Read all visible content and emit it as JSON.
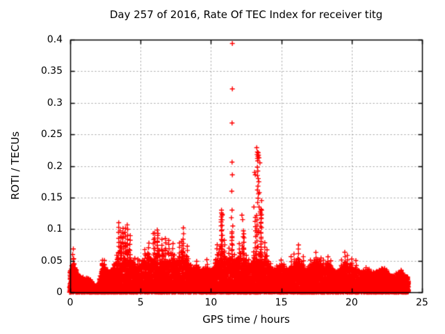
{
  "chart_data": {
    "type": "scatter",
    "title": "Day 257 of 2016, Rate Of TEC Index for receiver titg",
    "xlabel": "GPS time / hours",
    "ylabel": "ROTI / TECUs",
    "xlim": [
      0,
      25
    ],
    "ylim": [
      0,
      0.4
    ],
    "xticks": [
      0,
      5,
      10,
      15,
      20,
      25
    ],
    "xtick_labels": [
      "0",
      "5",
      "10",
      "15",
      "20",
      "25"
    ],
    "yticks": [
      0,
      0.05,
      0.1,
      0.15,
      0.2,
      0.25,
      0.3,
      0.35,
      0.4
    ],
    "ytick_labels": [
      "0",
      "0.05",
      "0.1",
      "0.15",
      "0.2",
      "0.25",
      "0.3",
      "0.35",
      "0.4"
    ],
    "grid": true,
    "grid_style": "dashed",
    "legend": "none",
    "marker": "plus",
    "marker_color": "#ff0000",
    "grid_color": "#9e9e9e",
    "frame_color": "#000000",
    "background_color": "#ffffff",
    "x_data_range_hours": [
      0,
      24
    ],
    "points_model": {
      "envelope_step_hours": 0.25,
      "envelope_max_roti": [
        0.05,
        0.08,
        0.048,
        0.04,
        0.038,
        0.035,
        0.028,
        0.012,
        0.012,
        0.065,
        0.06,
        0.045,
        0.055,
        0.07,
        0.12,
        0.115,
        0.12,
        0.1,
        0.07,
        0.06,
        0.065,
        0.09,
        0.095,
        0.075,
        0.105,
        0.11,
        0.095,
        0.1,
        0.095,
        0.09,
        0.07,
        0.1,
        0.11,
        0.09,
        0.065,
        0.055,
        0.065,
        0.05,
        0.055,
        0.06,
        0.055,
        0.065,
        0.085,
        0.13,
        0.09,
        0.08,
        0.11,
        0.075,
        0.085,
        0.12,
        0.075,
        0.065,
        0.08,
        0.15,
        0.145,
        0.095,
        0.075,
        0.06,
        0.052,
        0.058,
        0.065,
        0.058,
        0.052,
        0.06,
        0.07,
        0.085,
        0.062,
        0.052,
        0.06,
        0.068,
        0.078,
        0.072,
        0.058,
        0.068,
        0.062,
        0.052,
        0.048,
        0.058,
        0.072,
        0.066,
        0.062,
        0.058,
        0.052,
        0.048,
        0.056,
        0.052,
        0.046,
        0.046,
        0.052,
        0.056,
        0.05,
        0.042,
        0.042,
        0.046,
        0.052,
        0.042,
        0.04
      ],
      "outliers": [
        [
          11.52,
          0.394
        ],
        [
          11.52,
          0.322
        ],
        [
          11.5,
          0.268
        ],
        [
          11.5,
          0.206
        ],
        [
          11.52,
          0.186
        ],
        [
          11.48,
          0.16
        ],
        [
          11.5,
          0.13
        ],
        [
          11.45,
          0.118
        ],
        [
          11.55,
          0.105
        ],
        [
          13.25,
          0.229
        ],
        [
          13.3,
          0.222
        ],
        [
          13.28,
          0.218
        ],
        [
          13.33,
          0.215
        ],
        [
          13.36,
          0.221
        ],
        [
          13.3,
          0.212
        ],
        [
          13.38,
          0.217
        ],
        [
          13.32,
          0.208
        ],
        [
          13.41,
          0.213
        ],
        [
          13.48,
          0.205
        ],
        [
          13.3,
          0.198
        ],
        [
          13.33,
          0.192
        ],
        [
          13.3,
          0.185
        ],
        [
          13.36,
          0.18
        ],
        [
          13.4,
          0.175
        ],
        [
          13.34,
          0.168
        ],
        [
          13.3,
          0.162
        ],
        [
          13.38,
          0.156
        ],
        [
          13.35,
          0.149
        ],
        [
          13.32,
          0.142
        ],
        [
          13.44,
          0.158
        ],
        [
          13.42,
          0.135
        ],
        [
          13.5,
          0.128
        ],
        [
          13.55,
          0.122
        ],
        [
          13.6,
          0.145
        ],
        [
          13.05,
          0.135
        ],
        [
          13.1,
          0.19
        ],
        [
          13.15,
          0.186
        ],
        [
          12.2,
          0.122
        ],
        [
          12.25,
          0.115
        ],
        [
          10.75,
          0.13
        ],
        [
          10.8,
          0.122
        ],
        [
          10.72,
          0.115
        ]
      ]
    }
  }
}
